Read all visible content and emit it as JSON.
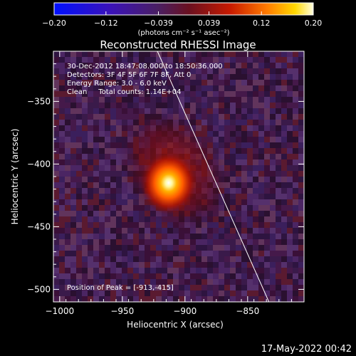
{
  "chart_data": {
    "type": "heatmap",
    "title": "Reconstructed RHESSI Image",
    "xlabel": "Heliocentric X (arcsec)",
    "ylabel": "Heliocentric Y (arcsec)",
    "xlim": [
      -1005,
      -805
    ],
    "ylim": [
      -510,
      -310
    ],
    "xticks": [
      -1000,
      -950,
      -900,
      -850
    ],
    "xtick_labels": [
      "−1000",
      "−950",
      "−900",
      "−850"
    ],
    "yticks": [
      -350,
      -400,
      -450,
      -500
    ],
    "ytick_labels": [
      "−350",
      "−400",
      "−450",
      "−500"
    ],
    "colorbar": {
      "min": -0.2,
      "max": 0.2,
      "ticks": [
        -0.2,
        -0.12,
        -0.039,
        0.039,
        0.12,
        0.2
      ],
      "tick_labels": [
        "−0.20",
        "−0.12",
        "−0.039",
        "0.039",
        "0.12",
        "0.20"
      ],
      "unit_label": "(photons cm⁻² s⁻¹ asec⁻²)"
    },
    "peak": {
      "x": -913,
      "y": -415,
      "value": 0.2
    },
    "annotations": [
      "30-Dec-2012 18:47:08.000 to 18:50:36.000",
      "Detectors: 3F 4F 5F 6F 7F 8F, Att 0",
      "Energy Range: 3.0 - 6.0 keV",
      "Clean     Total counts: 1.14E+04"
    ],
    "peak_label": "Position of Peak = [-913,-415]",
    "limb_line": [
      {
        "x": -922,
        "y": -310
      },
      {
        "x": -833,
        "y": -510
      }
    ],
    "footer": "17-May-2022 00:42"
  }
}
